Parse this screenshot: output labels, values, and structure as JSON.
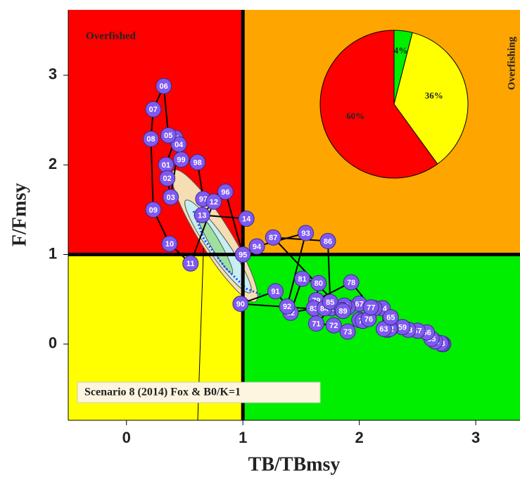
{
  "chart_data": [
    {
      "type": "scatter",
      "xlabel": "TB/TBmsy",
      "ylabel": "F/Fmsy",
      "annotations": [
        "Overfished",
        "Overfishing"
      ],
      "legend": "Scenario 8 (2014) Fox & B0/K=1",
      "xlim": [
        -0.5,
        3.38
      ],
      "ylim": [
        -0.85,
        3.73
      ],
      "xticks": [
        0,
        1,
        2,
        3
      ],
      "yticks": [
        0,
        1,
        2,
        3
      ],
      "vline": 1,
      "hline": 1,
      "quadrant_colors": [
        "#ff0000",
        "#ffa500",
        "#ffff00",
        "#00ee00"
      ],
      "series": [
        {
          "color": "#7f5af0",
          "labels": [
            "51",
            "52",
            "53",
            "54",
            "55",
            "56",
            "57",
            "58",
            "59",
            "60",
            "61",
            "62",
            "63",
            "64",
            "65",
            "66",
            "67",
            "68",
            "69",
            "70",
            "71",
            "72",
            "73",
            "74",
            "75",
            "76",
            "77",
            "78",
            "79",
            "80",
            "81",
            "82",
            "83",
            "84",
            "85",
            "86",
            "87",
            "88",
            "89",
            "90",
            "91",
            "92",
            "93",
            "94",
            "95",
            "96",
            "97",
            "98",
            "99",
            "00",
            "01",
            "02",
            "03",
            "04",
            "05",
            "06",
            "07",
            "08",
            "09",
            "10",
            "11",
            "12",
            "13",
            "14"
          ],
          "x": [
            2.72,
            2.71,
            2.7,
            2.65,
            2.62,
            2.58,
            2.5,
            2.42,
            2.37,
            2.27,
            2.24,
            2.26,
            2.21,
            2.2,
            2.27,
            2.13,
            2.0,
            1.9,
            1.87,
            1.76,
            1.63,
            1.78,
            1.9,
            2.0,
            2.03,
            2.08,
            2.1,
            1.93,
            1.63,
            1.65,
            1.51,
            1.41,
            1.61,
            1.7,
            1.75,
            1.73,
            1.26,
            1.85,
            1.86,
            0.98,
            1.28,
            1.38,
            1.54,
            1.12,
            1.0,
            0.85,
            0.66,
            0.61,
            0.47,
            0.42,
            0.34,
            0.35,
            0.38,
            0.45,
            0.36,
            0.32,
            0.23,
            0.21,
            0.23,
            0.37,
            0.55,
            0.75,
            0.65,
            1.03
          ],
          "values": [
            0.0,
            0.0,
            0.01,
            0.03,
            0.06,
            0.13,
            0.15,
            0.16,
            0.19,
            0.18,
            0.16,
            0.17,
            0.17,
            0.4,
            0.3,
            0.4,
            0.45,
            0.41,
            0.43,
            0.4,
            0.23,
            0.21,
            0.14,
            0.27,
            0.26,
            0.28,
            0.41,
            0.69,
            0.49,
            0.68,
            0.73,
            0.35,
            0.4,
            0.4,
            0.47,
            1.15,
            1.19,
            0.38,
            0.37,
            0.45,
            0.59,
            0.42,
            1.24,
            1.09,
            1.0,
            1.7,
            1.62,
            2.03,
            2.06,
            2.3,
            2.0,
            1.85,
            1.64,
            2.23,
            2.33,
            2.88,
            2.62,
            2.29,
            1.5,
            1.12,
            0.9,
            1.59,
            1.44,
            1.4
          ]
        }
      ]
    },
    {
      "type": "pie",
      "values": [
        4,
        36,
        60
      ],
      "value_labels": [
        "4%",
        "36%",
        "60%"
      ],
      "colors": [
        "#00ee00",
        "#ffff00",
        "#ff0000"
      ]
    }
  ]
}
